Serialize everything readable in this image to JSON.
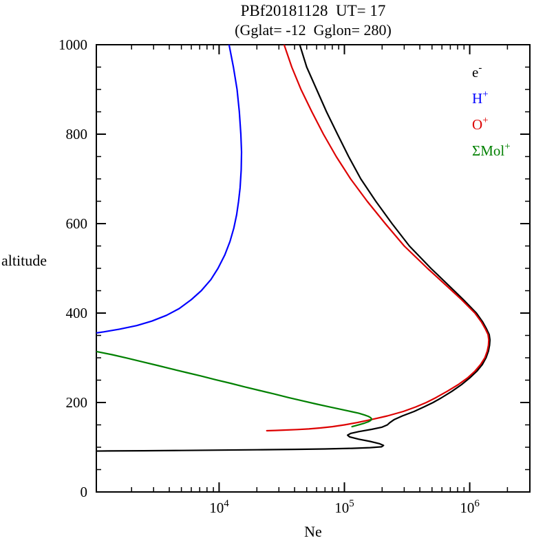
{
  "chart_data": {
    "type": "line",
    "title": "PBf20181128  UT= 17",
    "subtitle": "(Gglat= -12  Gglon= 280)",
    "xlabel": "Ne",
    "ylabel": "altitude",
    "x_scale": "log",
    "x_log_min": 3.02,
    "x_log_max": 6.48,
    "x_ticks": [
      10000,
      100000,
      1000000
    ],
    "x_tick_base": "10",
    "y_min": 0,
    "y_max": 1000,
    "y_ticks": [
      0,
      200,
      400,
      600,
      800,
      1000
    ],
    "y_minor_step": 50,
    "legend": [
      {
        "name": "electron",
        "base": "e",
        "sup": "-",
        "color": "#000000"
      },
      {
        "name": "hydrogen-ion",
        "base": "H",
        "sup": "+",
        "color": "#0000ff"
      },
      {
        "name": "oxygen-ion",
        "base": "O",
        "sup": "+",
        "color": "#dd0000"
      },
      {
        "name": "molecular-ions",
        "base": "ΣMol",
        "sup": "+",
        "color": "#008000"
      }
    ],
    "series": [
      {
        "name": "electron",
        "label": "e-",
        "color": "#000000",
        "points": [
          [
            1000,
            44000
          ],
          [
            950,
            50000
          ],
          [
            900,
            60000
          ],
          [
            850,
            72000
          ],
          [
            800,
            88000
          ],
          [
            750,
            108000
          ],
          [
            700,
            135000
          ],
          [
            650,
            178000
          ],
          [
            600,
            240000
          ],
          [
            550,
            330000
          ],
          [
            500,
            490000
          ],
          [
            460,
            690000
          ],
          [
            430,
            890000
          ],
          [
            400,
            1130000
          ],
          [
            380,
            1270000
          ],
          [
            365,
            1360000
          ],
          [
            352,
            1430000
          ],
          [
            340,
            1450000
          ],
          [
            328,
            1440000
          ],
          [
            315,
            1410000
          ],
          [
            300,
            1350000
          ],
          [
            285,
            1260000
          ],
          [
            270,
            1140000
          ],
          [
            255,
            1000000
          ],
          [
            240,
            860000
          ],
          [
            225,
            720000
          ],
          [
            210,
            590000
          ],
          [
            200,
            510000
          ],
          [
            190,
            430000
          ],
          [
            180,
            360000
          ],
          [
            170,
            290000
          ],
          [
            162,
            250000
          ],
          [
            155,
            230000
          ],
          [
            150,
            220000
          ],
          [
            145,
            200000
          ],
          [
            140,
            165000
          ],
          [
            135,
            130000
          ],
          [
            131,
            112000
          ],
          [
            127,
            106000
          ],
          [
            123,
            110000
          ],
          [
            118,
            130000
          ],
          [
            113,
            160000
          ],
          [
            108,
            190000
          ],
          [
            104,
            205000
          ],
          [
            101,
            198000
          ],
          [
            99,
            160000
          ],
          [
            97.5,
            115000
          ],
          [
            96.2,
            70000
          ],
          [
            95.2,
            40000
          ],
          [
            94.3,
            20000
          ],
          [
            93.5,
            10000
          ],
          [
            92.8,
            5000
          ],
          [
            92.2,
            2500
          ],
          [
            91.7,
            1300
          ],
          [
            91.3,
            850
          ]
        ]
      },
      {
        "name": "hydrogen-ion",
        "label": "H+",
        "color": "#0000ff",
        "points": [
          [
            1000,
            12000
          ],
          [
            950,
            13000
          ],
          [
            900,
            13900
          ],
          [
            850,
            14500
          ],
          [
            800,
            14900
          ],
          [
            760,
            15100
          ],
          [
            720,
            15000
          ],
          [
            680,
            14700
          ],
          [
            650,
            14300
          ],
          [
            620,
            13800
          ],
          [
            590,
            13100
          ],
          [
            560,
            12200
          ],
          [
            530,
            11100
          ],
          [
            500,
            9800
          ],
          [
            475,
            8600
          ],
          [
            450,
            7200
          ],
          [
            430,
            6000
          ],
          [
            410,
            4800
          ],
          [
            395,
            3800
          ],
          [
            382,
            2900
          ],
          [
            372,
            2200
          ],
          [
            364,
            1600
          ],
          [
            358,
            1200
          ],
          [
            353,
            900
          ]
        ]
      },
      {
        "name": "oxygen-ion",
        "label": "O+",
        "color": "#dd0000",
        "points": [
          [
            1000,
            33000
          ],
          [
            950,
            38000
          ],
          [
            900,
            45000
          ],
          [
            850,
            55000
          ],
          [
            800,
            68000
          ],
          [
            750,
            86000
          ],
          [
            700,
            112000
          ],
          [
            650,
            152000
          ],
          [
            600,
            212000
          ],
          [
            550,
            300000
          ],
          [
            500,
            460000
          ],
          [
            460,
            660000
          ],
          [
            430,
            860000
          ],
          [
            400,
            1100000
          ],
          [
            380,
            1240000
          ],
          [
            365,
            1330000
          ],
          [
            352,
            1400000
          ],
          [
            340,
            1420000
          ],
          [
            328,
            1410000
          ],
          [
            315,
            1380000
          ],
          [
            300,
            1320000
          ],
          [
            285,
            1220000
          ],
          [
            270,
            1100000
          ],
          [
            255,
            960000
          ],
          [
            240,
            810000
          ],
          [
            225,
            660000
          ],
          [
            210,
            530000
          ],
          [
            200,
            450000
          ],
          [
            190,
            370000
          ],
          [
            180,
            295000
          ],
          [
            170,
            220000
          ],
          [
            162,
            165000
          ],
          [
            155,
            125000
          ],
          [
            150,
            100000
          ],
          [
            146,
            80000
          ],
          [
            143,
            64000
          ],
          [
            141,
            52000
          ],
          [
            139.5,
            42000
          ],
          [
            138.5,
            34000
          ],
          [
            137.5,
            28000
          ],
          [
            137,
            24000
          ]
        ]
      },
      {
        "name": "molecular-ions",
        "label": "ΣMol+",
        "color": "#008000",
        "points": [
          [
            318,
            880
          ],
          [
            314,
            1050
          ],
          [
            307,
            1400
          ],
          [
            299,
            1850
          ],
          [
            291,
            2450
          ],
          [
            283,
            3200
          ],
          [
            275,
            4200
          ],
          [
            267,
            5500
          ],
          [
            259,
            7200
          ],
          [
            251,
            9400
          ],
          [
            243,
            12300
          ],
          [
            235,
            16000
          ],
          [
            227,
            21000
          ],
          [
            219,
            27500
          ],
          [
            211,
            36000
          ],
          [
            204,
            46000
          ],
          [
            197,
            59000
          ],
          [
            191,
            74000
          ],
          [
            185,
            93000
          ],
          [
            180,
            112000
          ],
          [
            176,
            130000
          ],
          [
            172,
            145000
          ],
          [
            169,
            155000
          ],
          [
            166,
            162000
          ],
          [
            163,
            165000
          ],
          [
            160,
            162000
          ],
          [
            157,
            155000
          ],
          [
            154,
            145000
          ],
          [
            151,
            133000
          ],
          [
            148,
            122000
          ],
          [
            146,
            115000
          ]
        ]
      }
    ]
  }
}
